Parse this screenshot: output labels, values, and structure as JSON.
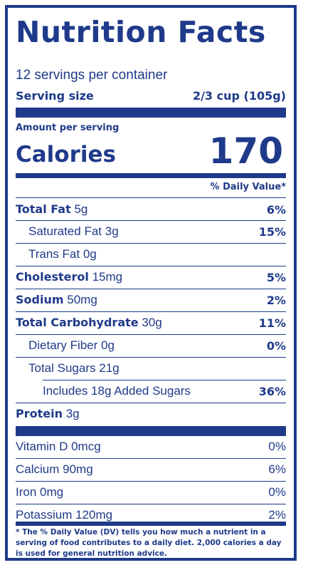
{
  "title": "Nutrition Facts",
  "servings_per_container": "12 servings per container",
  "serving_size": {
    "label": "Serving size",
    "value": "2/3 cup (105g)"
  },
  "amount_per_serving": "Amount per serving",
  "calories": {
    "label": "Calories",
    "value": "170"
  },
  "daily_value_header": "% Daily Value*",
  "nutrients": [
    {
      "name": "Total Fat",
      "amount": "5g",
      "dv": "6%"
    },
    {
      "name": "Saturated Fat",
      "amount": "3g",
      "dv": "15%"
    },
    {
      "name": "Trans Fat",
      "amount": "0g",
      "dv": ""
    },
    {
      "name": "Cholesterol",
      "amount": "15mg",
      "dv": "5%"
    },
    {
      "name": "Sodium",
      "amount": "50mg",
      "dv": "2%"
    },
    {
      "name": "Total Carbohydrate",
      "amount": "30g",
      "dv": "11%"
    },
    {
      "name": "Dietary Fiber",
      "amount": "0g",
      "dv": "0%"
    },
    {
      "name": "Total Sugars",
      "amount": "21g",
      "dv": ""
    },
    {
      "name": "Includes 18g Added Sugars",
      "amount": "",
      "dv": "36%"
    },
    {
      "name": "Protein",
      "amount": "3g",
      "dv": ""
    }
  ],
  "vitamins": [
    {
      "name": "Vitamin D 0mcg",
      "dv": "0%"
    },
    {
      "name": "Calcium 90mg",
      "dv": "6%"
    },
    {
      "name": "Iron 0mg",
      "dv": "0%"
    },
    {
      "name": "Potassium 120mg",
      "dv": "2%"
    }
  ],
  "footnote": "* The % Daily Value (DV) tells you how much a nutrient in a serving of food contributes to a daily diet. 2,000 calories a day is used for general nutrition advice.",
  "colors": {
    "ink": "#1f3a8a",
    "background": "#ffffff"
  }
}
